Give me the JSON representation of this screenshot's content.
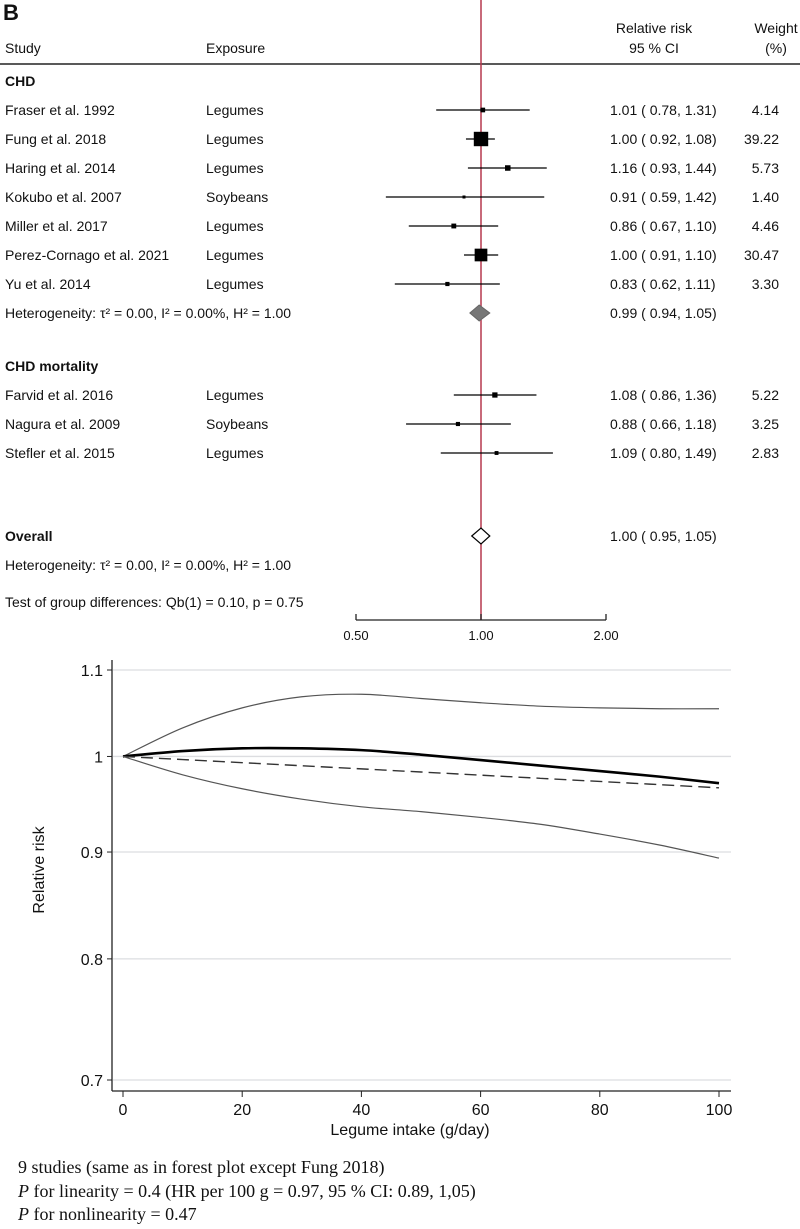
{
  "panel_label": "B",
  "chart_data": [
    {
      "type": "forest",
      "headers": {
        "study": "Study",
        "exposure": "Exposure",
        "rr_line1": "Relative risk",
        "rr_line2": "95 % CI",
        "weight_line1": "Weight",
        "weight_line2": "(%)"
      },
      "x_scale": "log",
      "reference_line": 1.0,
      "reference_color": "#b5394e",
      "x_ticks": [
        0.5,
        1.0,
        2.0
      ],
      "x_tick_labels": [
        "0.50",
        "1.00",
        "2.00"
      ],
      "groups": [
        {
          "name": "CHD",
          "studies": [
            {
              "study": "Fraser et al. 1992",
              "exposure": "Legumes",
              "rr": 1.01,
              "lo": 0.78,
              "hi": 1.31,
              "ci_text": "1.01 ( 0.78,  1.31)",
              "weight": "4.14"
            },
            {
              "study": "Fung et al. 2018",
              "exposure": "Legumes",
              "rr": 1.0,
              "lo": 0.92,
              "hi": 1.08,
              "ci_text": "1.00 ( 0.92,  1.08)",
              "weight": "39.22"
            },
            {
              "study": "Haring et al. 2014",
              "exposure": "Legumes",
              "rr": 1.16,
              "lo": 0.93,
              "hi": 1.44,
              "ci_text": "1.16 ( 0.93,  1.44)",
              "weight": "5.73"
            },
            {
              "study": "Kokubo et al. 2007",
              "exposure": "Soybeans",
              "rr": 0.91,
              "lo": 0.59,
              "hi": 1.42,
              "ci_text": "0.91 ( 0.59,  1.42)",
              "weight": "1.40"
            },
            {
              "study": "Miller et al. 2017",
              "exposure": "Legumes",
              "rr": 0.86,
              "lo": 0.67,
              "hi": 1.1,
              "ci_text": "0.86 ( 0.67,  1.10)",
              "weight": "4.46"
            },
            {
              "study": "Perez-Cornago et al. 2021",
              "exposure": "Legumes",
              "rr": 1.0,
              "lo": 0.91,
              "hi": 1.1,
              "ci_text": "1.00 ( 0.91,  1.10)",
              "weight": "30.47"
            },
            {
              "study": "Yu et al. 2014",
              "exposure": "Legumes",
              "rr": 0.83,
              "lo": 0.62,
              "hi": 1.11,
              "ci_text": "0.83 ( 0.62,  1.11)",
              "weight": "3.30"
            }
          ],
          "subtotal": {
            "label": "Heterogeneity: τ² = 0.00, I² = 0.00%, H² = 1.00",
            "rr": 0.99,
            "lo": 0.94,
            "hi": 1.05,
            "ci_text": "0.99 ( 0.94,  1.05)"
          }
        },
        {
          "name": "CHD mortality",
          "studies": [
            {
              "study": "Farvid et al. 2016",
              "exposure": "Legumes",
              "rr": 1.08,
              "lo": 0.86,
              "hi": 1.36,
              "ci_text": "1.08 ( 0.86,  1.36)",
              "weight": "5.22"
            },
            {
              "study": "Nagura et al. 2009",
              "exposure": "Soybeans",
              "rr": 0.88,
              "lo": 0.66,
              "hi": 1.18,
              "ci_text": "0.88 ( 0.66,  1.18)",
              "weight": "3.25"
            },
            {
              "study": "Stefler et al. 2015",
              "exposure": "Legumes",
              "rr": 1.09,
              "lo": 0.8,
              "hi": 1.49,
              "ci_text": "1.09 ( 0.80,  1.49)",
              "weight": "2.83"
            }
          ]
        }
      ],
      "overall": {
        "label": "Overall",
        "rr": 1.0,
        "lo": 0.95,
        "hi": 1.05,
        "ci_text": "1.00 ( 0.95,  1.05)",
        "heterogeneity": "Heterogeneity: τ² = 0.00, I² = 0.00%, H² = 1.00",
        "group_test": "Test of group differences: Qb(1) = 0.10, p = 0.75"
      }
    },
    {
      "type": "line",
      "xlabel": "Legume intake (g/day)",
      "ylabel": "Relative risk",
      "x_scale": "linear",
      "y_scale": "log",
      "xlim": [
        0,
        100
      ],
      "ylim": [
        0.7,
        1.1
      ],
      "x_ticks": [
        0,
        20,
        40,
        60,
        80,
        100
      ],
      "y_ticks": [
        0.7,
        0.8,
        0.9,
        1.0,
        1.1
      ],
      "grid": true,
      "x": [
        0,
        10,
        20,
        30,
        40,
        50,
        60,
        70,
        80,
        90,
        100
      ],
      "series": [
        {
          "style": "upper-ci",
          "values": [
            1.0,
            1.032,
            1.055,
            1.068,
            1.071,
            1.066,
            1.061,
            1.057,
            1.055,
            1.054,
            1.054
          ]
        },
        {
          "style": "estimate",
          "values": [
            1.0,
            1.006,
            1.009,
            1.009,
            1.007,
            1.002,
            0.996,
            0.99,
            0.984,
            0.978,
            0.971
          ]
        },
        {
          "style": "linear",
          "values": [
            1.0,
            0.9966,
            0.9932,
            0.9898,
            0.9864,
            0.983,
            0.9796,
            0.9762,
            0.9728,
            0.9694,
            0.966
          ]
        },
        {
          "style": "lower-ci",
          "values": [
            1.0,
            0.98,
            0.965,
            0.954,
            0.946,
            0.941,
            0.935,
            0.928,
            0.918,
            0.907,
            0.894
          ]
        }
      ]
    }
  ],
  "notes": [
    "9 studies (same as in forest plot except Fung 2018)",
    {
      "p": "P",
      "text": " for linearity = 0.4 (HR per 100 g = 0.97, 95 % CI: 0.89, 1,05)"
    },
    {
      "p": "P",
      "text": " for nonlinearity = 0.47"
    }
  ]
}
